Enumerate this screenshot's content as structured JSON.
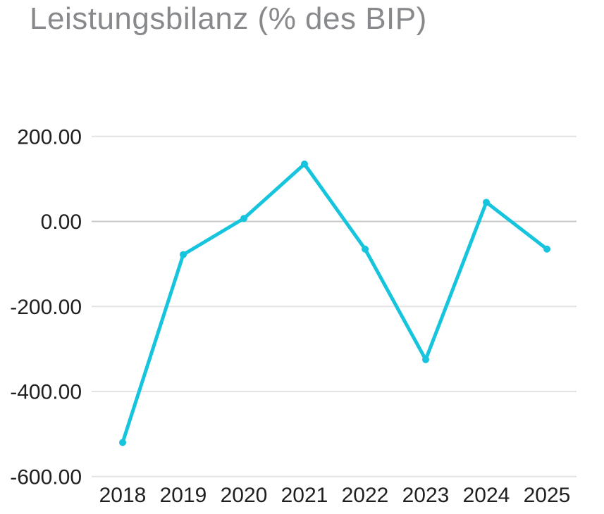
{
  "chart_data": {
    "type": "line",
    "title": "Leistungsbilanz (% des BIP)",
    "categories": [
      "2018",
      "2019",
      "2020",
      "2021",
      "2022",
      "2023",
      "2024",
      "2025"
    ],
    "series": [
      {
        "name": "Leistungsbilanz",
        "values": [
          -520,
          -78,
          7,
          135,
          -65,
          -325,
          45,
          -65
        ]
      }
    ],
    "y_ticks": [
      {
        "value": 200,
        "label": "200.00"
      },
      {
        "value": 0,
        "label": "0.00"
      },
      {
        "value": -200,
        "label": "-200.00"
      },
      {
        "value": -400,
        "label": "-400.00"
      },
      {
        "value": -600,
        "label": "-600.00"
      }
    ],
    "ylim": [
      -600,
      200
    ],
    "xlabel": "",
    "ylabel": "",
    "legend": "none",
    "grid": "horizontal",
    "marker": "circle",
    "colors": {
      "line": "#16c5dd",
      "marker": "#16c5dd",
      "gridline": "#e4e4e4",
      "zero_gridline": "#c9c9c9",
      "tick_text": "#1f1f1f",
      "title_text": "#87898c",
      "background": "#ffffff"
    }
  }
}
